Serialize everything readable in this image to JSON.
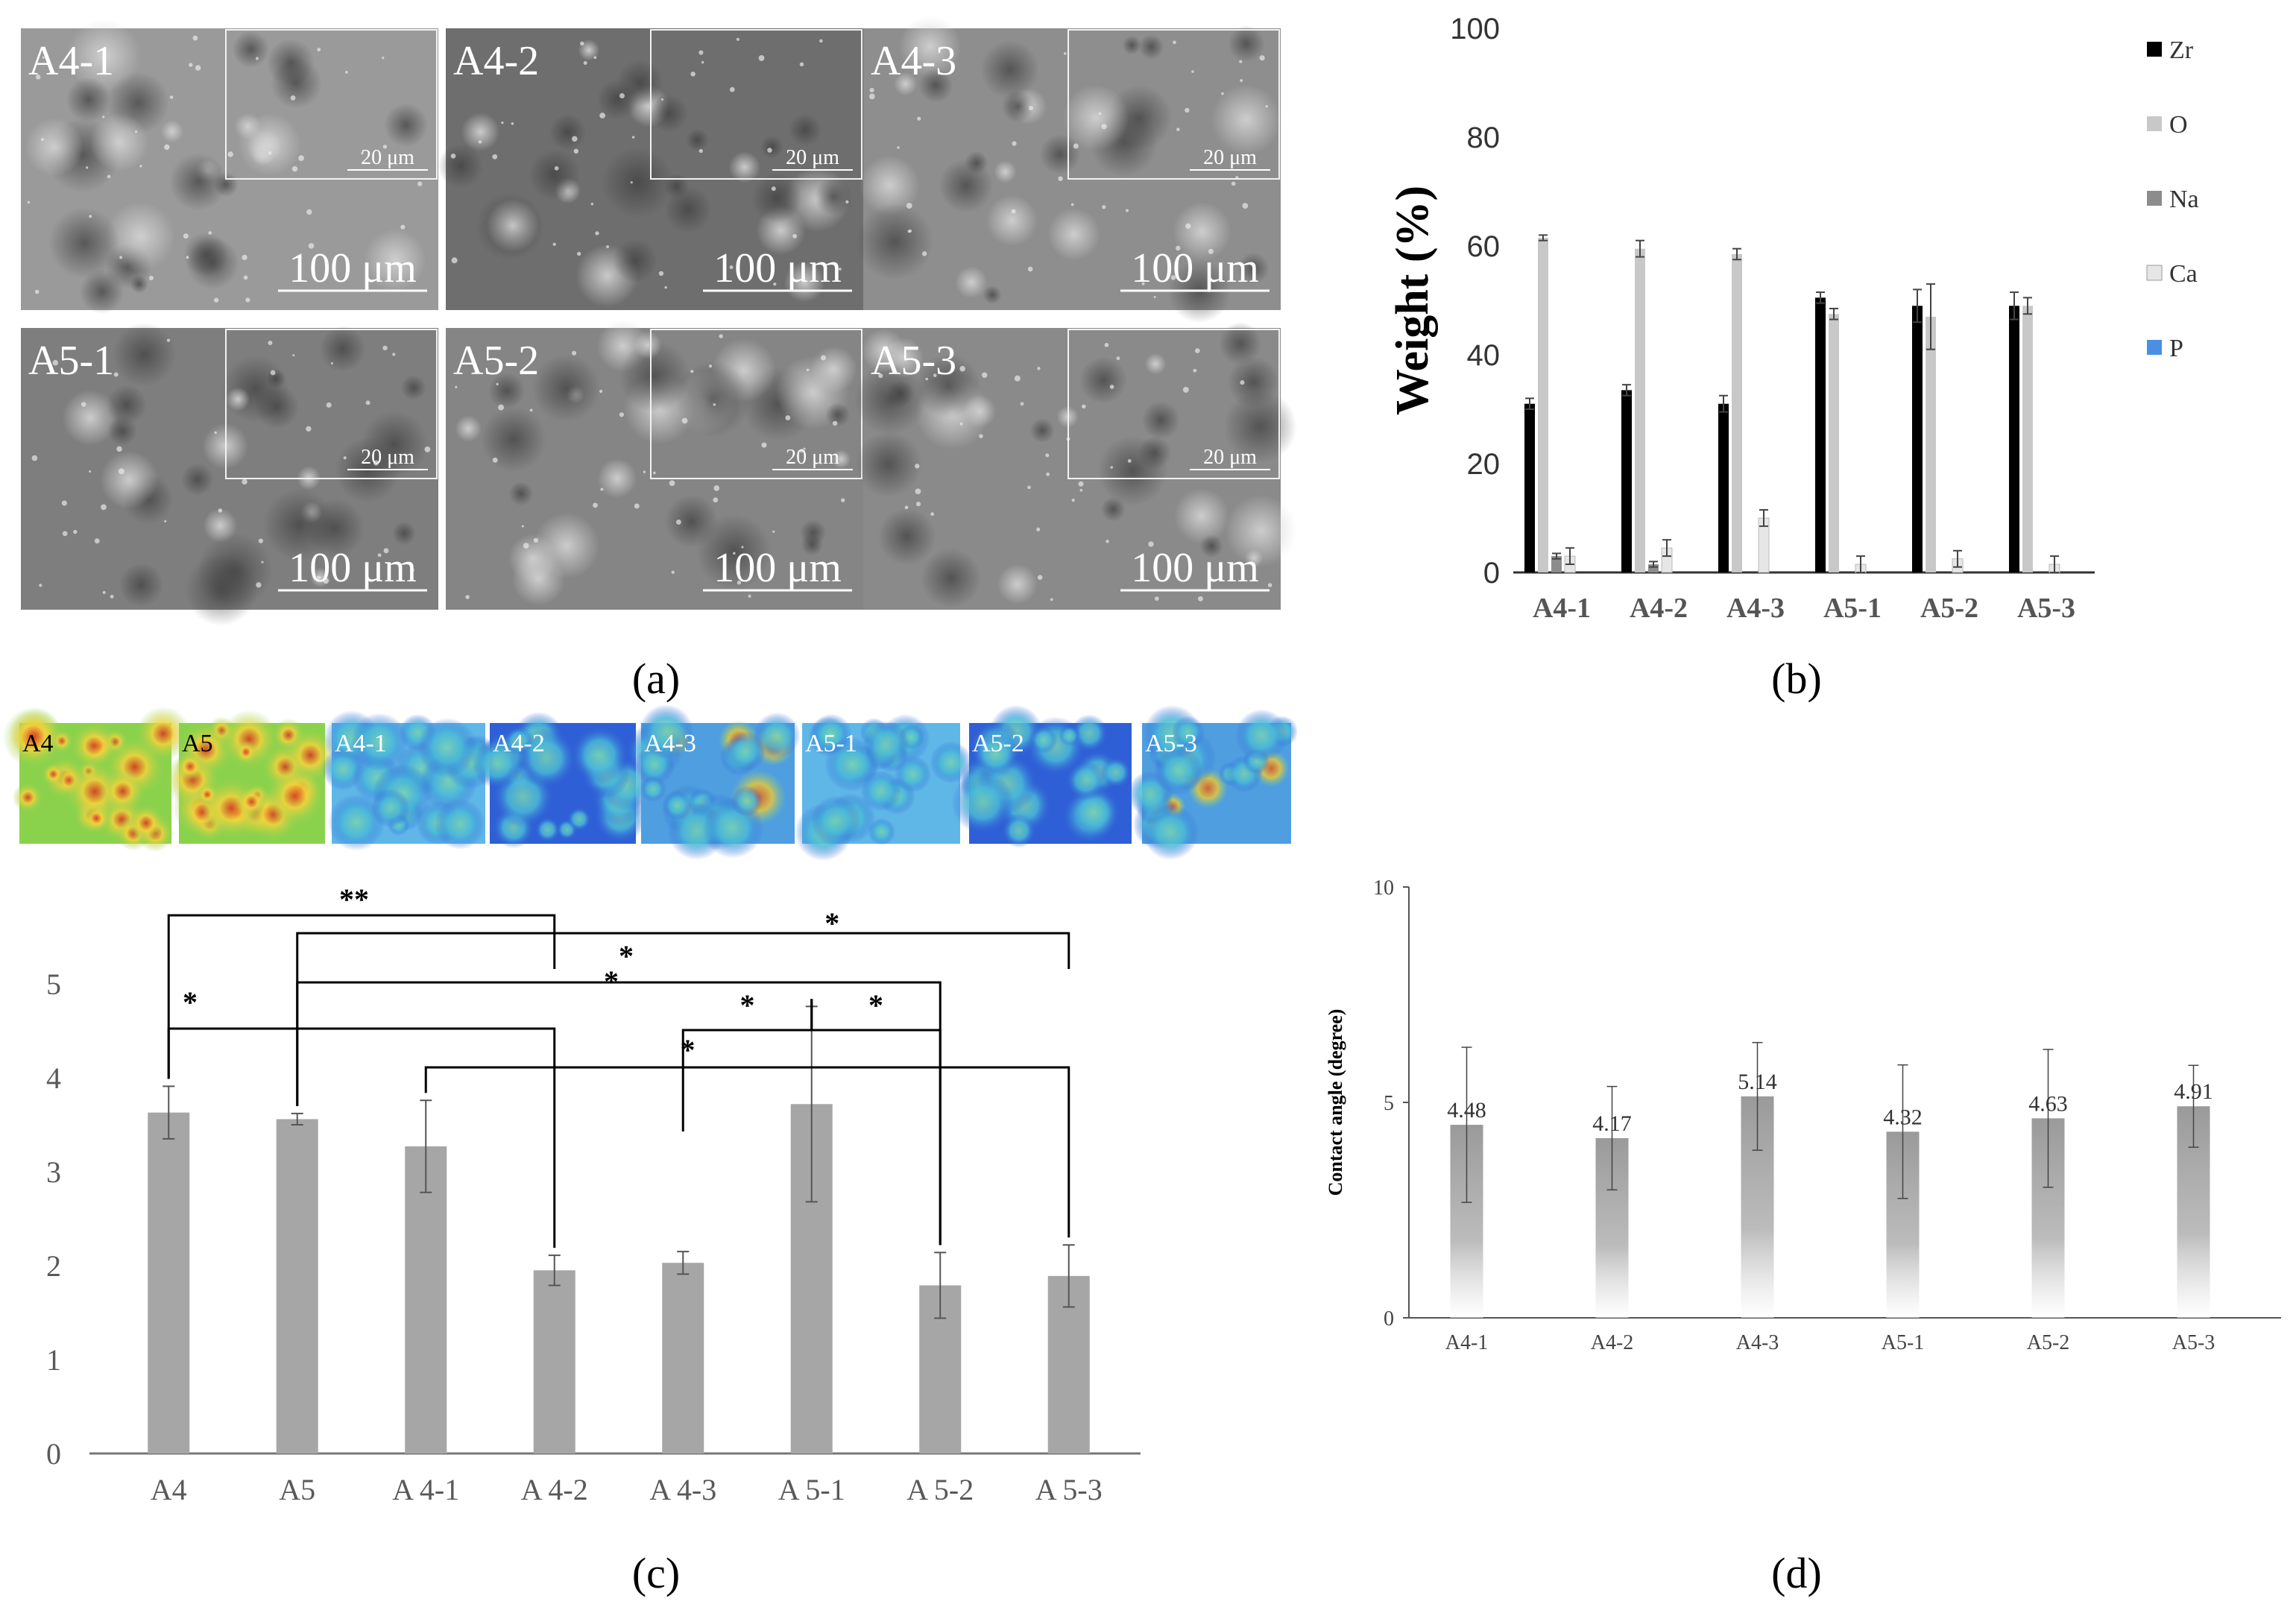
{
  "colors": {
    "zr": "#000000",
    "o": "#c8c8c8",
    "na": "#8c8c8c",
    "ca": "#e6e6e6",
    "p": "#4a90e2",
    "bar_gray": "#a6a6a6",
    "axis": "#595959",
    "sem_bg": "#8a8a8a",
    "text": "#000000"
  },
  "panel_labels": {
    "a": "(a)",
    "b": "(b)",
    "c": "(c)",
    "d": "(d)"
  },
  "sem_panels": [
    {
      "label": "A4-1",
      "inset_scale": "20 μm",
      "scale": "100 μm",
      "tone": "#9a9a9a"
    },
    {
      "label": "A4-2",
      "inset_scale": "20 μm",
      "scale": "100 μm",
      "tone": "#6e6e6e"
    },
    {
      "label": "A4-3",
      "inset_scale": "20 μm",
      "scale": "100 μm",
      "tone": "#8e8e8e"
    },
    {
      "label": "A5-1",
      "inset_scale": "20 μm",
      "scale": "100 μm",
      "tone": "#7e7e7e"
    },
    {
      "label": "A5-2",
      "inset_scale": "20 μm",
      "scale": "100 μm",
      "tone": "#858585"
    },
    {
      "label": "A5-3",
      "inset_scale": "20 μm",
      "scale": "100 μm",
      "tone": "#8a8a8a"
    }
  ],
  "heatmaps": [
    {
      "label": "A4",
      "tone": "warm"
    },
    {
      "label": "A5",
      "tone": "warm"
    },
    {
      "label": "A4-1",
      "tone": "mid"
    },
    {
      "label": "A4-2",
      "tone": "cool"
    },
    {
      "label": "A4-3",
      "tone": "mixed"
    },
    {
      "label": "A5-1",
      "tone": "mid"
    },
    {
      "label": "A5-2",
      "tone": "cool"
    },
    {
      "label": "A5-3",
      "tone": "mixed"
    }
  ],
  "chart_data": [
    {
      "id": "b",
      "type": "bar",
      "title": "",
      "xlabel": "",
      "ylabel": "Weight (%)",
      "ylim": [
        0,
        100
      ],
      "yticks": [
        0,
        20,
        40,
        60,
        80,
        100
      ],
      "categories": [
        "A4-1",
        "A4-2",
        "A4-3",
        "A5-1",
        "A5-2",
        "A5-3"
      ],
      "legend_position": "right",
      "series": [
        {
          "name": "Zr",
          "values": [
            31,
            33.5,
            31,
            50.5,
            49,
            49
          ],
          "errors": [
            1,
            1,
            1.5,
            1,
            3,
            2.5
          ]
        },
        {
          "name": "O",
          "values": [
            61.5,
            59.5,
            58.5,
            47.5,
            47,
            49
          ],
          "errors": [
            0.5,
            1.5,
            1,
            1,
            6,
            1.5
          ]
        },
        {
          "name": "Na",
          "values": [
            3,
            1.5,
            0,
            0,
            0,
            0
          ],
          "errors": [
            0.5,
            0.5,
            0,
            0,
            0,
            0
          ]
        },
        {
          "name": "Ca",
          "values": [
            3,
            4.5,
            10,
            1.5,
            2.5,
            1.5
          ],
          "errors": [
            1.5,
            1.5,
            1.5,
            1.5,
            1.5,
            1.5
          ]
        },
        {
          "name": "P",
          "values": [
            0,
            0,
            0,
            0,
            0,
            0
          ],
          "errors": [
            0,
            0,
            0,
            0,
            0,
            0
          ]
        }
      ]
    },
    {
      "id": "c",
      "type": "bar",
      "title": "",
      "xlabel": "",
      "ylabel": "",
      "ylim": [
        0,
        5
      ],
      "yticks": [
        0,
        1,
        2,
        3,
        4,
        5
      ],
      "categories": [
        "A4",
        "A5",
        "A 4-1",
        "A 4-2",
        "A 4-3",
        "A 5-1",
        "A 5-2",
        "A 5-3"
      ],
      "values": [
        3.63,
        3.56,
        3.27,
        1.95,
        2.03,
        3.72,
        1.79,
        1.89
      ],
      "errors": [
        0.28,
        0.06,
        0.49,
        0.16,
        0.12,
        1.04,
        0.35,
        0.33
      ],
      "significance": [
        {
          "from": 0,
          "to": 3,
          "label": "**"
        },
        {
          "from": 1,
          "to": 7,
          "label": "*"
        },
        {
          "from": 1,
          "to": 6,
          "label": "*"
        },
        {
          "from": 0,
          "to": 3,
          "label": "*"
        },
        {
          "from": 4,
          "to": 5,
          "label": "*"
        },
        {
          "from": 5,
          "to": 6,
          "label": "*"
        },
        {
          "from": 2,
          "to": 7,
          "label": "*"
        }
      ],
      "extra_stars": [
        "*"
      ]
    },
    {
      "id": "d",
      "type": "bar",
      "title": "",
      "xlabel": "",
      "ylabel": "Contact angle (degree)",
      "ylim": [
        0,
        10
      ],
      "yticks": [
        0,
        5,
        10
      ],
      "categories": [
        "A4-1",
        "A4-2",
        "A4-3",
        "A5-1",
        "A5-2",
        "A5-3"
      ],
      "values": [
        4.48,
        4.17,
        5.14,
        4.32,
        4.63,
        4.91
      ],
      "value_labels": [
        "4.48",
        "4.17",
        "5.14",
        "4.32",
        "4.63",
        "4.91"
      ],
      "errors": [
        1.8,
        1.2,
        1.25,
        1.55,
        1.6,
        0.95
      ]
    }
  ]
}
